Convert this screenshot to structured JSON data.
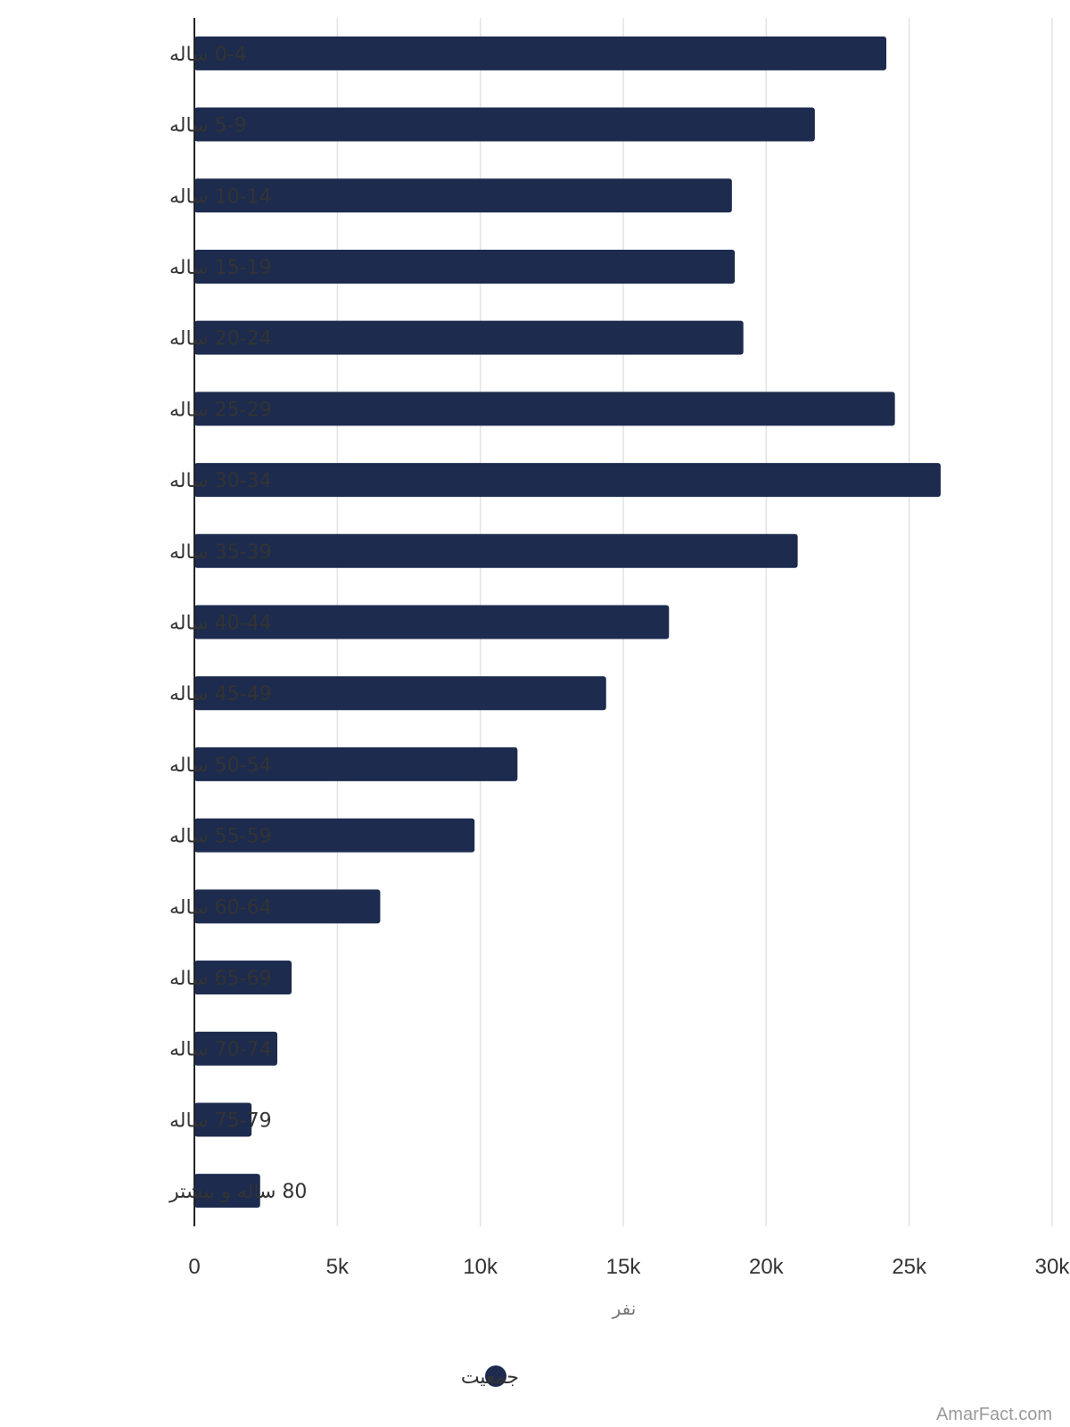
{
  "chart_data": {
    "type": "bar",
    "orientation": "horizontal",
    "categories": [
      "0-4 ساله",
      "5-9 ساله",
      "10-14 ساله",
      "15-19 ساله",
      "20-24 ساله",
      "25-29 ساله",
      "30-34 ساله",
      "35-39 ساله",
      "40-44 ساله",
      "45-49 ساله",
      "50-54 ساله",
      "55-59 ساله",
      "60-64 ساله",
      "65-69 ساله",
      "70-74 ساله",
      "75-79 ساله",
      "80 ساله و بیشتر"
    ],
    "series": [
      {
        "name": "جمعیت",
        "color": "#1c2b4e",
        "values": [
          24200,
          21700,
          18800,
          18900,
          19200,
          24500,
          26100,
          21100,
          16600,
          14400,
          11300,
          9800,
          6500,
          3400,
          2900,
          2000,
          2300
        ]
      }
    ],
    "xlim": [
      0,
      30000
    ],
    "xticks": [
      0,
      5000,
      10000,
      15000,
      20000,
      25000,
      30000
    ],
    "xtick_labels": [
      "0",
      "5k",
      "10k",
      "15k",
      "20k",
      "25k",
      "30k"
    ],
    "xlabel": "نفر",
    "grid": true,
    "legend_position": "bottom"
  },
  "legend": {
    "label": "جمعیت"
  },
  "watermark": "AmarFact.com"
}
